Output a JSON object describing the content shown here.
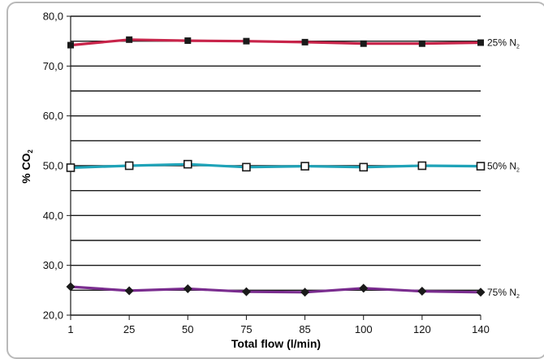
{
  "chart_data": {
    "type": "line",
    "title": "",
    "xlabel": "Total flow (l/min)",
    "ylabel": "% CO",
    "ylabel_subscript": "2",
    "categories": [
      "1",
      "25",
      "50",
      "75",
      "85",
      "100",
      "120",
      "140"
    ],
    "y_tick_labels": [
      "20,0",
      "30,0",
      "40,0",
      "50,0",
      "60,0",
      "70,0",
      "80,0"
    ],
    "ylim": [
      20,
      80
    ],
    "y_gridline_step": 5,
    "grid": "horizontal",
    "series": [
      {
        "name": "25% N",
        "name_subscript": "2",
        "color": "#c8244a",
        "marker_type": "filled-square",
        "values": [
          74.2,
          75.3,
          75.1,
          75.0,
          74.8,
          74.5,
          74.5,
          74.7
        ]
      },
      {
        "name": "50% N",
        "name_subscript": "2",
        "color": "#1fa3b8",
        "marker_type": "hollow-square",
        "values": [
          49.6,
          50.0,
          50.3,
          49.7,
          49.9,
          49.7,
          50.0,
          49.9
        ]
      },
      {
        "name": "75% N",
        "name_subscript": "2",
        "color": "#7a2d8f",
        "marker_type": "diamond",
        "values": [
          25.7,
          24.9,
          25.3,
          24.7,
          24.6,
          25.4,
          24.8,
          24.6
        ]
      }
    ]
  }
}
